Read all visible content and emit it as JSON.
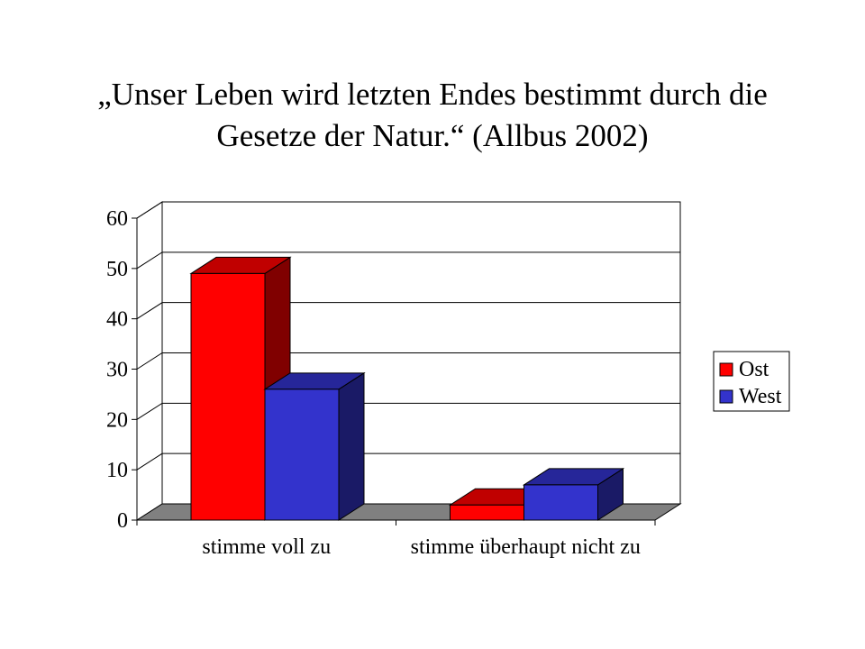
{
  "title": {
    "line1": "„Unser Leben wird letzten Endes bestimmt durch die",
    "line2": "Gesetze der Natur.“ (Allbus 2002)"
  },
  "colors": {
    "ost_front": "#ff0000",
    "ost_side": "#800000",
    "ost_top": "#c00000",
    "west_front": "#3333cc",
    "west_side": "#1a1a66",
    "west_top": "#262699",
    "floor": "#808080"
  },
  "chart_data": {
    "type": "bar",
    "categories": [
      "stimme voll zu",
      "stimme überhaupt nicht zu"
    ],
    "series": [
      {
        "name": "Ost",
        "values": [
          49,
          3
        ]
      },
      {
        "name": "West",
        "values": [
          26,
          7
        ]
      }
    ],
    "title": "„Unser Leben wird letzten Endes bestimmt durch die Gesetze der Natur.“ (Allbus 2002)",
    "xlabel": "",
    "ylabel": "",
    "ylim": [
      0,
      60
    ],
    "yticks": [
      0,
      10,
      20,
      30,
      40,
      50,
      60
    ],
    "grid": true,
    "legend": "right"
  }
}
